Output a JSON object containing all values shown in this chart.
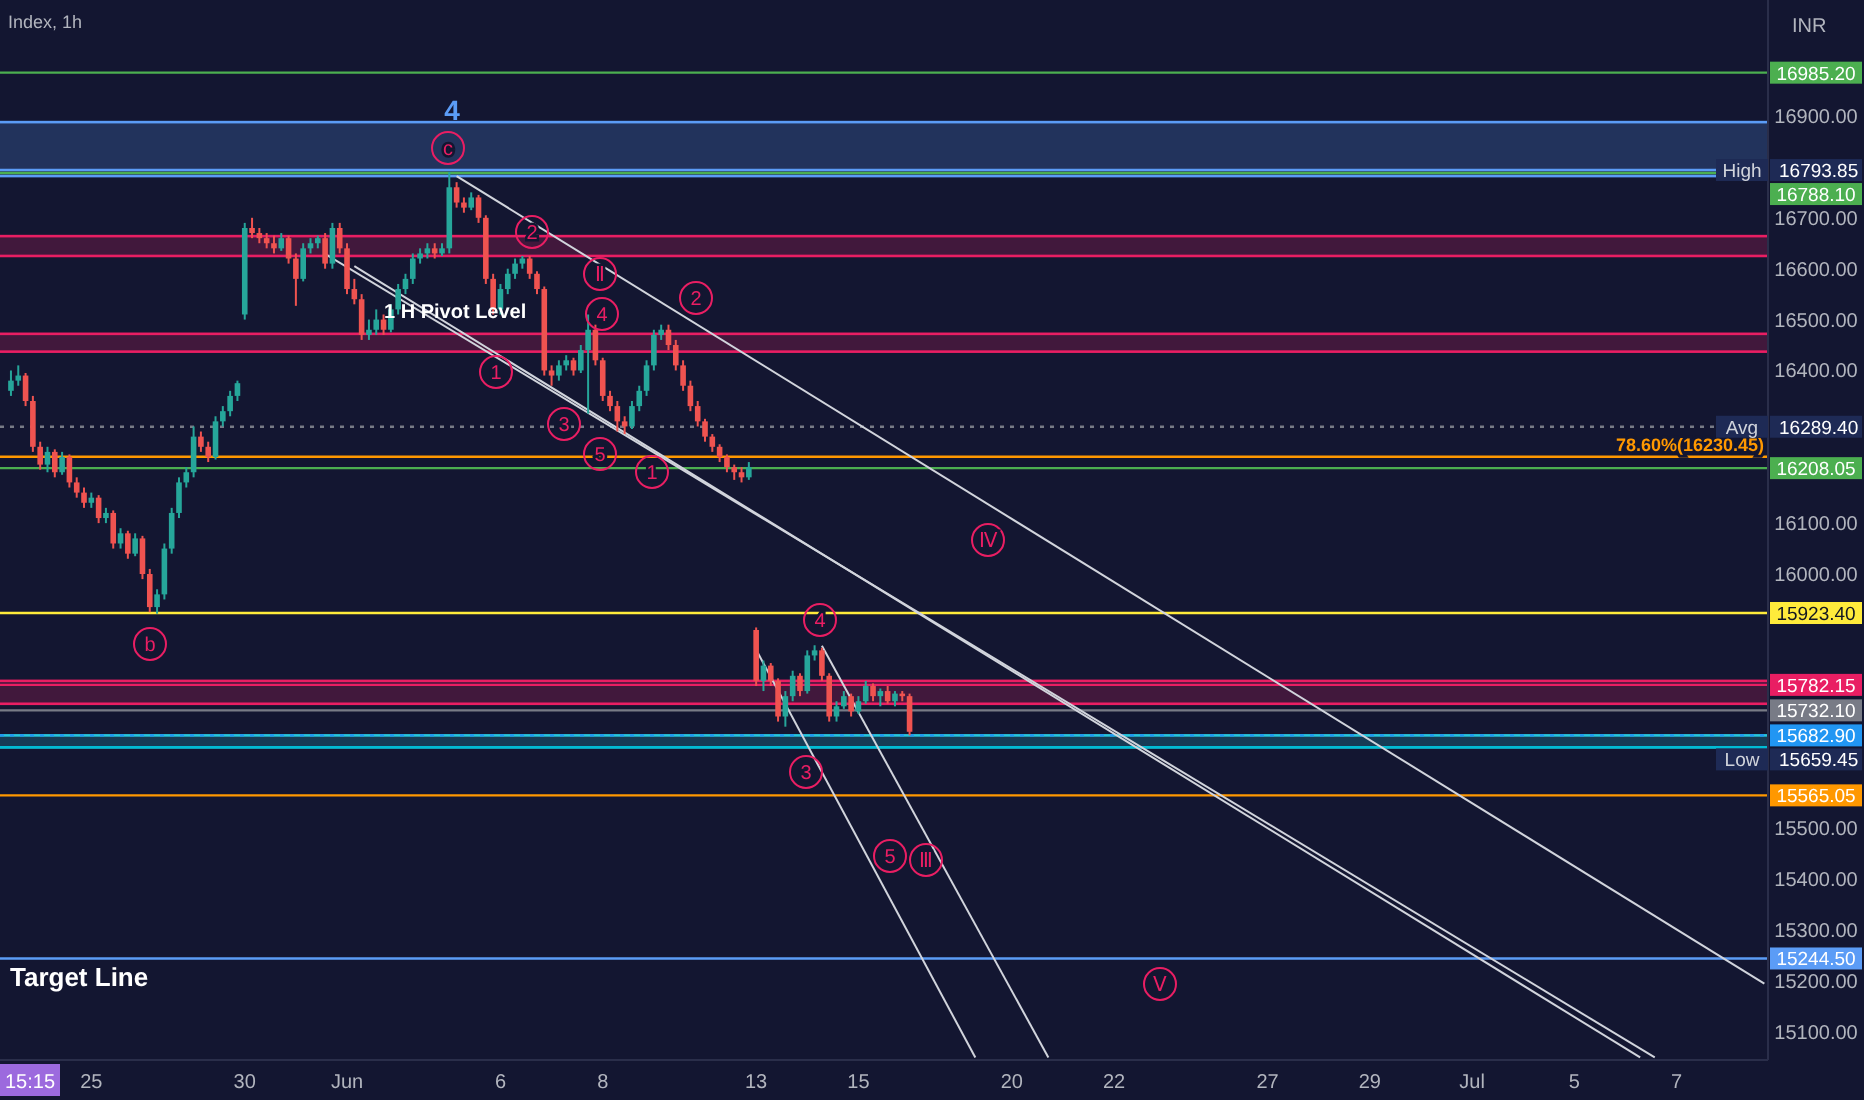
{
  "chart_data": {
    "type": "candlestick",
    "title": "Index, 1h",
    "ylabel": "INR",
    "ylim": [
      15045,
      17128
    ],
    "yticks": [
      {
        "value": 15100,
        "label": "15100.00"
      },
      {
        "value": 15200,
        "label": "15200.00"
      },
      {
        "value": 15300,
        "label": "15300.00"
      },
      {
        "value": 15400,
        "label": "15400.00"
      },
      {
        "value": 15500,
        "label": "15500.00"
      },
      {
        "value": 16000,
        "label": "16000.00"
      },
      {
        "value": 16100,
        "label": "16100.00"
      },
      {
        "value": 16400,
        "label": "16400.00"
      },
      {
        "value": 16500,
        "label": "16500.00"
      },
      {
        "value": 16600,
        "label": "16600.00"
      },
      {
        "value": 16700,
        "label": "16700.00"
      },
      {
        "value": 16900,
        "label": "16900.00"
      }
    ],
    "categories": [
      null,
      null,
      null,
      null,
      null,
      null,
      null,
      null,
      null,
      null,
      null,
      null,
      "25",
      null,
      null,
      null,
      null,
      null,
      null,
      null,
      null,
      null,
      null,
      null,
      null,
      null,
      null,
      null,
      null,
      null,
      null,
      null,
      null,
      "30",
      null,
      null,
      null,
      null,
      null,
      null,
      null,
      null,
      null,
      null,
      null,
      null,
      null,
      "Jun",
      null,
      null,
      null,
      null,
      null,
      null,
      null,
      null,
      null,
      null,
      null,
      null,
      null,
      null,
      null,
      null,
      null,
      null,
      null,
      null,
      "6",
      null,
      null,
      null,
      null,
      null,
      null,
      null,
      null,
      null,
      null,
      null,
      null,
      null,
      "8",
      null,
      null,
      null,
      null,
      null,
      null,
      null,
      null,
      null,
      null,
      null,
      null,
      null,
      null,
      null,
      null,
      null,
      null,
      null,
      null,
      "13",
      null,
      null,
      null,
      null,
      null,
      null,
      null,
      null,
      null,
      null,
      null,
      null,
      null,
      "15",
      null,
      null,
      null,
      null,
      null,
      null,
      null,
      null,
      null,
      null,
      null,
      null,
      null,
      null,
      null,
      null,
      null,
      null,
      null,
      null,
      "20",
      null,
      null,
      null,
      null,
      null,
      null,
      null,
      null,
      null,
      null,
      null,
      null,
      null,
      "22",
      null,
      null,
      null,
      null,
      null,
      null,
      null,
      null,
      null,
      null,
      null,
      null,
      null,
      null,
      null,
      null,
      null,
      null,
      null,
      null,
      "27",
      null,
      null,
      null,
      null,
      null,
      null,
      null,
      null,
      null,
      null,
      null,
      null,
      null,
      "29",
      null,
      null,
      null,
      null,
      null,
      null,
      null,
      null,
      null,
      null,
      null,
      null,
      null,
      "Jul",
      null,
      null,
      null,
      null,
      null,
      null,
      null,
      null,
      null,
      null,
      null,
      null,
      null,
      "5",
      null,
      null,
      null,
      null,
      null,
      null,
      null,
      null,
      null,
      null,
      null,
      null,
      null,
      "7",
      null,
      null,
      null,
      null,
      null,
      null,
      null,
      null,
      null,
      null,
      null,
      null
    ],
    "ohlc": [
      null,
      [
        16360,
        16400,
        16350,
        16380
      ],
      [
        16380,
        16410,
        16370,
        16390
      ],
      [
        16390,
        16395,
        16330,
        16340
      ],
      [
        16340,
        16350,
        16240,
        16250
      ],
      [
        16250,
        16260,
        16205,
        16215
      ],
      [
        16215,
        16250,
        16200,
        16240
      ],
      [
        16240,
        16245,
        16190,
        16200
      ],
      [
        16200,
        16240,
        16195,
        16230
      ],
      [
        16230,
        16235,
        16170,
        16180
      ],
      [
        16180,
        16190,
        16150,
        16160
      ],
      [
        16160,
        16170,
        16130,
        16140
      ],
      [
        16140,
        16160,
        16130,
        16150
      ],
      [
        16150,
        16155,
        16100,
        16110
      ],
      [
        16110,
        16130,
        16100,
        16120
      ],
      [
        16120,
        16125,
        16050,
        16060
      ],
      [
        16060,
        16090,
        16050,
        16080
      ],
      [
        16080,
        16085,
        16030,
        16040
      ],
      [
        16040,
        16080,
        16035,
        16070
      ],
      [
        16070,
        16075,
        15990,
        16000
      ],
      [
        16000,
        16010,
        15925,
        15935
      ],
      [
        15935,
        15970,
        15922,
        15960
      ],
      [
        15960,
        16060,
        15950,
        16050
      ],
      [
        16050,
        16130,
        16040,
        16120
      ],
      [
        16120,
        16190,
        16110,
        16180
      ],
      [
        16180,
        16210,
        16170,
        16200
      ],
      [
        16200,
        16290,
        16190,
        16270
      ],
      [
        16270,
        16280,
        16240,
        16250
      ],
      [
        16250,
        16260,
        16220,
        16230
      ],
      [
        16230,
        16310,
        16225,
        16300
      ],
      [
        16300,
        16330,
        16290,
        16320
      ],
      [
        16320,
        16360,
        16310,
        16350
      ],
      [
        16350,
        16380,
        16340,
        16375
      ],
      [
        16510,
        16690,
        16500,
        16680
      ],
      [
        16680,
        16700,
        16660,
        16670
      ],
      [
        16670,
        16680,
        16650,
        16660
      ],
      [
        16660,
        16670,
        16640,
        16650
      ],
      [
        16650,
        16665,
        16630,
        16640
      ],
      [
        16640,
        16670,
        16635,
        16660
      ],
      [
        16660,
        16665,
        16610,
        16620
      ],
      [
        16620,
        16630,
        16527,
        16580
      ],
      [
        16580,
        16650,
        16575,
        16640
      ],
      [
        16640,
        16660,
        16630,
        16650
      ],
      [
        16650,
        16665,
        16640,
        16660
      ],
      [
        16660,
        16670,
        16600,
        16610
      ],
      [
        16610,
        16690,
        16600,
        16680
      ],
      [
        16680,
        16690,
        16630,
        16640
      ],
      [
        16640,
        16650,
        16550,
        16560
      ],
      [
        16560,
        16580,
        16530,
        16540
      ],
      [
        16540,
        16550,
        16460,
        16470
      ],
      [
        16470,
        16500,
        16460,
        16480
      ],
      [
        16480,
        16520,
        16470,
        16500
      ],
      [
        16500,
        16510,
        16470,
        16480
      ],
      [
        16480,
        16530,
        16475,
        16520
      ],
      [
        16520,
        16570,
        16510,
        16560
      ],
      [
        16560,
        16590,
        16550,
        16580
      ],
      [
        16580,
        16630,
        16570,
        16620
      ],
      [
        16620,
        16640,
        16610,
        16630
      ],
      [
        16630,
        16650,
        16620,
        16640
      ],
      [
        16640,
        16650,
        16620,
        16630
      ],
      [
        16630,
        16650,
        16625,
        16640
      ],
      [
        16640,
        16790,
        16630,
        16760
      ],
      [
        16760,
        16770,
        16720,
        16730
      ],
      [
        16730,
        16740,
        16710,
        16720
      ],
      [
        16720,
        16750,
        16715,
        16740
      ],
      [
        16740,
        16745,
        16690,
        16700
      ],
      [
        16700,
        16705,
        16570,
        16580
      ],
      [
        16580,
        16590,
        16510,
        16520
      ],
      [
        16520,
        16570,
        16510,
        16560
      ],
      [
        16560,
        16600,
        16550,
        16590
      ],
      [
        16590,
        16620,
        16580,
        16610
      ],
      [
        16610,
        16625,
        16600,
        16620
      ],
      [
        16620,
        16625,
        16580,
        16590
      ],
      [
        16590,
        16595,
        16550,
        16560
      ],
      [
        16560,
        16565,
        16390,
        16400
      ],
      [
        16400,
        16410,
        16370,
        16390
      ],
      [
        16390,
        16420,
        16380,
        16410
      ],
      [
        16410,
        16430,
        16400,
        16420
      ],
      [
        16420,
        16425,
        16390,
        16400
      ],
      [
        16400,
        16450,
        16395,
        16440
      ],
      [
        16440,
        16510,
        16315,
        16480
      ],
      [
        16480,
        16490,
        16410,
        16420
      ],
      [
        16420,
        16425,
        16340,
        16350
      ],
      [
        16350,
        16360,
        16320,
        16330
      ],
      [
        16330,
        16340,
        16280,
        16300
      ],
      [
        16300,
        16310,
        16275,
        16290
      ],
      [
        16290,
        16340,
        16285,
        16330
      ],
      [
        16330,
        16370,
        16320,
        16360
      ],
      [
        16360,
        16420,
        16350,
        16410
      ],
      [
        16410,
        16480,
        16400,
        16470
      ],
      [
        16470,
        16490,
        16460,
        16480
      ],
      [
        16480,
        16490,
        16440,
        16450
      ],
      [
        16450,
        16460,
        16400,
        16410
      ],
      [
        16410,
        16420,
        16360,
        16370
      ],
      [
        16370,
        16380,
        16320,
        16330
      ],
      [
        16330,
        16340,
        16290,
        16300
      ],
      [
        16300,
        16305,
        16260,
        16270
      ],
      [
        16270,
        16275,
        16240,
        16250
      ],
      [
        16250,
        16255,
        16220,
        16230
      ],
      [
        16230,
        16235,
        16200,
        16210
      ],
      [
        16210,
        16215,
        16185,
        16200
      ],
      [
        16200,
        16210,
        16180,
        16190
      ],
      [
        16190,
        16220,
        16185,
        16210
      ],
      [
        15890,
        15895,
        15780,
        15790
      ],
      [
        15790,
        15830,
        15770,
        15820
      ],
      [
        15820,
        15825,
        15780,
        15790
      ],
      [
        15790,
        15795,
        15710,
        15720
      ],
      [
        15720,
        15770,
        15700,
        15760
      ],
      [
        15760,
        15810,
        15750,
        15800
      ],
      [
        15800,
        15805,
        15760,
        15770
      ],
      [
        15770,
        15850,
        15765,
        15840
      ],
      [
        15840,
        15860,
        15830,
        15850
      ],
      [
        15850,
        15855,
        15790,
        15800
      ],
      [
        15800,
        15805,
        15710,
        15720
      ],
      [
        15720,
        15750,
        15710,
        15740
      ],
      [
        15740,
        15770,
        15735,
        15760
      ],
      [
        15760,
        15765,
        15720,
        15730
      ],
      [
        15730,
        15760,
        15725,
        15750
      ],
      [
        15750,
        15790,
        15745,
        15780
      ],
      [
        15780,
        15785,
        15750,
        15760
      ],
      [
        15760,
        15775,
        15740,
        15770
      ],
      [
        15770,
        15780,
        15745,
        15750
      ],
      [
        15750,
        15770,
        15740,
        15765
      ],
      [
        15765,
        15770,
        15750,
        15760
      ],
      [
        15760,
        15765,
        15683,
        15690
      ],
      null,
      null,
      null,
      null,
      null,
      null,
      null,
      null,
      null,
      null,
      null,
      null,
      null,
      null,
      null,
      null,
      null,
      null,
      null,
      null,
      null,
      null,
      null,
      null,
      null,
      null,
      null,
      null,
      null,
      null,
      null,
      null,
      null,
      null,
      null,
      null,
      null,
      null,
      null,
      null,
      null,
      null,
      null,
      null,
      null,
      null,
      null,
      null,
      null,
      null,
      null,
      null,
      null,
      null,
      null,
      null,
      null,
      null,
      null,
      null,
      null,
      null,
      null,
      null,
      null,
      null,
      null,
      null,
      null,
      null,
      null,
      null,
      null,
      null,
      null,
      null,
      null,
      null,
      null,
      null,
      null,
      null,
      null,
      null,
      null,
      null,
      null,
      null,
      null,
      null,
      null,
      null,
      null,
      null,
      null,
      null,
      null,
      null,
      null,
      null,
      null,
      null,
      null,
      null,
      null,
      null,
      null,
      null,
      null,
      null,
      null,
      null,
      null,
      null,
      null,
      null,
      null
    ],
    "series": [
      {
        "type": "line",
        "color": "#d1d4dc",
        "values": [
          null,
          null,
          null,
          null,
          null,
          null,
          null,
          null,
          null,
          null,
          null,
          null,
          null,
          null,
          null,
          null,
          null,
          null,
          null,
          null,
          null,
          null,
          null,
          null,
          null,
          null,
          null,
          null,
          null,
          null,
          null,
          null,
          null,
          null,
          null,
          null,
          null,
          null,
          null,
          null,
          null,
          null,
          null,
          null,
          null,
          null,
          null,
          null,
          null,
          null,
          null,
          null,
          null,
          null,
          null,
          null,
          null,
          null,
          null,
          null,
          null,
          null,
          16782,
          null,
          null,
          null,
          null,
          null,
          null,
          null,
          null,
          null,
          null,
          null,
          null,
          null,
          null,
          null,
          null,
          null,
          null,
          null,
          null,
          null,
          null,
          null,
          null,
          null,
          null,
          null,
          null,
          null,
          null,
          null,
          null,
          null,
          null,
          null,
          null,
          null,
          null,
          null,
          null,
          null,
          null,
          null,
          null,
          null,
          null,
          null,
          null,
          null,
          null,
          null,
          null,
          null,
          null,
          null,
          null,
          null,
          null,
          null,
          null,
          null,
          null,
          null,
          null,
          null,
          null,
          null,
          null,
          null,
          null,
          null,
          null,
          null,
          null,
          null,
          null,
          null,
          null,
          null,
          null,
          null,
          null,
          null,
          null,
          null,
          null,
          null,
          null,
          null,
          null,
          null,
          null,
          null,
          null,
          null,
          null,
          null,
          null,
          null,
          null,
          null,
          null,
          null,
          null,
          null,
          null,
          null,
          null,
          null,
          null,
          null,
          null,
          null,
          null,
          null,
          null,
          null,
          null,
          null,
          null,
          null,
          null,
          null,
          null,
          null,
          null,
          null,
          null,
          null,
          null,
          null,
          null,
          null,
          null,
          null,
          null,
          null,
          null,
          null,
          null,
          null,
          null,
          null,
          null,
          null,
          null,
          null,
          null,
          null,
          null,
          null,
          null,
          null,
          null,
          null,
          null,
          null,
          null,
          null,
          null,
          null,
          null,
          null,
          null,
          null,
          null,
          null,
          null,
          null,
          null,
          null,
          null,
          null,
          null,
          null,
          null,
          null,
          null,
          15195
        ]
      },
      {
        "type": "line",
        "color": "#d1d4dc",
        "values": [
          null,
          null,
          null,
          null,
          null,
          null,
          null,
          null,
          null,
          null,
          null,
          null,
          null,
          null,
          null,
          null,
          null,
          null,
          null,
          null,
          null,
          null,
          null,
          null,
          null,
          null,
          null,
          null,
          null,
          null,
          null,
          null,
          null,
          null,
          null,
          null,
          null,
          null,
          null,
          null,
          null,
          null,
          null,
          null,
          16629,
          null,
          null,
          null,
          null,
          null,
          null,
          null,
          null,
          null,
          null,
          null,
          null,
          null,
          null,
          null,
          null,
          null,
          null,
          null,
          null,
          null,
          null,
          null,
          null,
          null,
          null,
          null,
          null,
          null,
          null,
          null,
          null,
          null,
          null,
          null,
          null,
          null,
          null,
          null,
          null,
          null,
          null,
          null,
          null,
          null,
          null,
          null,
          null,
          null,
          null,
          null,
          null,
          null,
          null,
          null,
          null,
          null,
          null,
          null,
          null,
          null,
          null,
          null,
          null,
          null,
          null,
          null,
          null,
          null,
          null,
          null,
          null,
          null,
          null,
          null,
          null,
          null,
          null,
          null,
          null,
          null,
          null,
          null,
          null,
          null,
          null,
          null,
          null,
          null,
          null,
          null,
          null,
          null,
          null,
          null,
          null,
          null,
          null,
          null,
          null,
          null,
          null,
          null,
          null,
          null,
          null,
          null,
          null,
          null,
          null,
          null,
          null,
          null,
          null,
          null,
          null,
          null,
          null,
          null,
          null,
          null,
          null,
          null,
          null,
          null,
          null,
          null,
          null,
          null,
          null,
          null,
          null,
          null,
          null,
          null,
          null,
          null,
          null,
          null,
          null,
          null,
          null,
          null,
          null,
          null,
          null,
          null,
          null,
          null,
          null,
          null,
          null,
          null,
          null,
          null,
          null,
          null,
          null,
          null,
          null,
          null,
          null,
          null,
          null,
          null,
          null,
          null,
          null,
          null,
          null,
          null,
          null,
          null,
          null,
          null,
          null,
          null,
          null,
          null,
          null,
          null,
          15050,
          null,
          null,
          null,
          null,
          null,
          null,
          null,
          null,
          null,
          null,
          null,
          null,
          null,
          null,
          null
        ]
      },
      {
        "type": "line",
        "color": "#d1d4dc",
        "values": [
          null,
          null,
          null,
          null,
          null,
          null,
          null,
          null,
          null,
          null,
          null,
          null,
          null,
          null,
          null,
          null,
          null,
          null,
          null,
          null,
          null,
          null,
          null,
          null,
          null,
          null,
          null,
          null,
          null,
          null,
          null,
          null,
          null,
          null,
          null,
          null,
          null,
          null,
          null,
          null,
          null,
          null,
          null,
          null,
          null,
          null,
          null,
          null,
          16605,
          null,
          null,
          null,
          null,
          null,
          null,
          null,
          null,
          null,
          null,
          null,
          null,
          null,
          null,
          null,
          null,
          null,
          null,
          null,
          null,
          null,
          null,
          null,
          null,
          null,
          null,
          null,
          null,
          null,
          null,
          null,
          null,
          null,
          null,
          null,
          null,
          null,
          null,
          null,
          null,
          null,
          null,
          null,
          null,
          null,
          null,
          null,
          null,
          null,
          null,
          null,
          null,
          null,
          null,
          null,
          null,
          null,
          null,
          null,
          null,
          null,
          null,
          null,
          null,
          null,
          null,
          null,
          null,
          null,
          null,
          null,
          null,
          null,
          null,
          null,
          null,
          null,
          null,
          null,
          null,
          null,
          null,
          null,
          null,
          null,
          null,
          null,
          null,
          null,
          null,
          null,
          null,
          null,
          null,
          null,
          null,
          null,
          null,
          null,
          null,
          null,
          null,
          null,
          null,
          null,
          null,
          null,
          null,
          null,
          null,
          null,
          null,
          null,
          null,
          null,
          null,
          null,
          null,
          null,
          null,
          null,
          null,
          null,
          null,
          null,
          null,
          null,
          null,
          null,
          null,
          null,
          null,
          null,
          null,
          null,
          null,
          null,
          null,
          null,
          null,
          null,
          null,
          null,
          null,
          null,
          null,
          null,
          null,
          null,
          null,
          null,
          null,
          null,
          null,
          null,
          null,
          null,
          null,
          null,
          null,
          null,
          null,
          null,
          null,
          null,
          null,
          null,
          null,
          null,
          null,
          null,
          null,
          null,
          null,
          null,
          15050,
          null,
          null,
          null,
          null,
          null,
          null,
          null,
          null,
          null,
          null,
          null,
          null,
          null,
          null,
          null,
          null,
          null
        ]
      },
      {
        "type": "line",
        "color": "#d1d4dc",
        "values": [
          null,
          null,
          null,
          null,
          null,
          null,
          null,
          null,
          null,
          null,
          null,
          null,
          null,
          null,
          null,
          null,
          null,
          null,
          null,
          null,
          null,
          null,
          null,
          null,
          null,
          null,
          null,
          null,
          null,
          null,
          null,
          null,
          null,
          null,
          null,
          null,
          null,
          null,
          null,
          null,
          null,
          null,
          null,
          null,
          null,
          null,
          null,
          null,
          null,
          null,
          null,
          null,
          null,
          null,
          null,
          null,
          null,
          null,
          null,
          null,
          null,
          null,
          null,
          null,
          null,
          null,
          null,
          null,
          null,
          null,
          null,
          null,
          null,
          null,
          null,
          null,
          null,
          null,
          null,
          null,
          null,
          null,
          null,
          null,
          null,
          null,
          null,
          null,
          null,
          null,
          null,
          null,
          null,
          null,
          null,
          null,
          null,
          null,
          null,
          null,
          null,
          null,
          null,
          15851,
          null,
          null,
          null,
          null,
          null,
          null,
          null,
          null,
          null,
          null,
          null,
          null,
          null,
          null,
          null,
          null,
          null,
          null,
          null,
          null,
          null,
          null,
          null,
          null,
          null,
          null,
          null,
          null,
          null,
          15050,
          null,
          null,
          null,
          null,
          null,
          null,
          null,
          null,
          null,
          null,
          null,
          null,
          null,
          null,
          null,
          null,
          null,
          null,
          null,
          null,
          null,
          null,
          null,
          null,
          null,
          null,
          null,
          null,
          null,
          null,
          null,
          null,
          null,
          null,
          null,
          null,
          null,
          null,
          null,
          null,
          null,
          null,
          null,
          null,
          null,
          null,
          null,
          null,
          null,
          null,
          null,
          null,
          null,
          null,
          null,
          null,
          null,
          null,
          null,
          null,
          null,
          null,
          null,
          null,
          null,
          null,
          null,
          null,
          null,
          null,
          null,
          null,
          null,
          null,
          null,
          null,
          null,
          null,
          null,
          null,
          null,
          null,
          null,
          null,
          null,
          null,
          null,
          null,
          null,
          null,
          null,
          null,
          null,
          null,
          null,
          null,
          null,
          null,
          null,
          null,
          null,
          null,
          null,
          null,
          null,
          null,
          null,
          null
        ]
      },
      {
        "type": "line",
        "color": "#d1d4dc",
        "values": [
          null,
          null,
          null,
          null,
          null,
          null,
          null,
          null,
          null,
          null,
          null,
          null,
          null,
          null,
          null,
          null,
          null,
          null,
          null,
          null,
          null,
          null,
          null,
          null,
          null,
          null,
          null,
          null,
          null,
          null,
          null,
          null,
          null,
          null,
          null,
          null,
          null,
          null,
          null,
          null,
          null,
          null,
          null,
          null,
          null,
          null,
          null,
          null,
          null,
          null,
          null,
          null,
          null,
          null,
          null,
          null,
          null,
          null,
          null,
          null,
          null,
          null,
          null,
          null,
          null,
          null,
          null,
          null,
          null,
          null,
          null,
          null,
          null,
          null,
          null,
          null,
          null,
          null,
          null,
          null,
          null,
          null,
          null,
          null,
          null,
          null,
          null,
          null,
          null,
          null,
          null,
          null,
          null,
          null,
          null,
          null,
          null,
          null,
          null,
          null,
          null,
          null,
          null,
          null,
          null,
          null,
          null,
          null,
          null,
          null,
          null,
          null,
          15859,
          null,
          null,
          null,
          null,
          null,
          null,
          null,
          null,
          null,
          null,
          null,
          null,
          null,
          null,
          null,
          null,
          null,
          null,
          null,
          null,
          null,
          null,
          null,
          null,
          null,
          null,
          null,
          null,
          null,
          null,
          15050,
          null,
          null,
          null,
          null,
          null,
          null,
          null,
          null,
          null,
          null,
          null,
          null,
          null,
          null,
          null,
          null,
          null,
          null,
          null,
          null,
          null,
          null,
          null,
          null,
          null,
          null,
          null,
          null,
          null,
          null,
          null,
          null,
          null,
          null,
          null,
          null,
          null,
          null,
          null,
          null,
          null,
          null,
          null,
          null,
          null,
          null,
          null,
          null,
          null,
          null,
          null,
          null,
          null,
          null,
          null,
          null,
          null,
          null,
          null,
          null,
          null,
          null,
          null,
          null,
          null,
          null,
          null,
          null,
          null,
          null,
          null,
          null,
          null,
          null,
          null,
          null,
          null,
          null,
          null,
          null,
          null,
          null,
          null,
          null,
          null,
          null,
          null,
          null,
          null,
          null,
          null,
          null,
          null,
          null,
          null,
          null,
          null,
          null
        ]
      }
    ],
    "bands": [
      {
        "axis": "y",
        "from": 16782,
        "to": 16888,
        "color": "#5b9cf6"
      },
      {
        "axis": "y",
        "from": 16625,
        "to": 16664,
        "color": "#e91e63"
      },
      {
        "axis": "y",
        "from": 16437,
        "to": 16472,
        "color": "#e91e63"
      },
      {
        "axis": "y",
        "from": 15745,
        "to": 15790,
        "color": "#e91e63"
      },
      {
        "axis": "y",
        "from": 15659.45,
        "to": 15682.9,
        "color": "#26c6da"
      }
    ],
    "ref_lines": [
      {
        "axis": "y",
        "value": 16985.2,
        "label": "16985.20",
        "color": "#4caf50"
      },
      {
        "axis": "y",
        "value": 16793.85,
        "label": "High 16793.85",
        "color": "#5b9cf6"
      },
      {
        "axis": "y",
        "value": 16788.1,
        "label": "16788.10",
        "color": "#4caf50"
      },
      {
        "axis": "y",
        "value": 16289.4,
        "label": "Avg 16289.40",
        "color": "#787b86",
        "line_style": "dotted"
      },
      {
        "axis": "y",
        "value": 16230.45,
        "label": "78.60%(16230.45)",
        "color": "#ff9800"
      },
      {
        "axis": "y",
        "value": 16208.05,
        "label": "16208.05",
        "color": "#4caf50"
      },
      {
        "axis": "y",
        "value": 15923.4,
        "label": "15923.40",
        "color": "#ffeb3b"
      },
      {
        "axis": "y",
        "value": 15782.15,
        "label": "15782.15",
        "color": "#e91e63"
      },
      {
        "axis": "y",
        "value": 15732.1,
        "label": "15732.10",
        "color": "#787b86"
      },
      {
        "axis": "y",
        "value": 15682.9,
        "label": "15682.90",
        "color": "#2196f3",
        "line_style": "dotted"
      },
      {
        "axis": "y",
        "value": 15659.45,
        "label": "Low 15659.45",
        "color": "#00bcd4"
      },
      {
        "axis": "y",
        "value": 15565.05,
        "label": "15565.05",
        "color": "#ff9800"
      },
      {
        "axis": "y",
        "value": 15244.5,
        "label": "15244.50",
        "color": "#5b9cf6"
      }
    ],
    "annotations": [
      "4",
      "c",
      "2",
      "Ⅱ",
      "4",
      "2",
      "1",
      "3",
      "5",
      "1",
      "Ⅳ",
      "b",
      "4",
      "3",
      "5",
      "Ⅲ",
      "Ⅴ",
      "1 H Pivot Level",
      "Target Line",
      "15:15"
    ]
  }
}
